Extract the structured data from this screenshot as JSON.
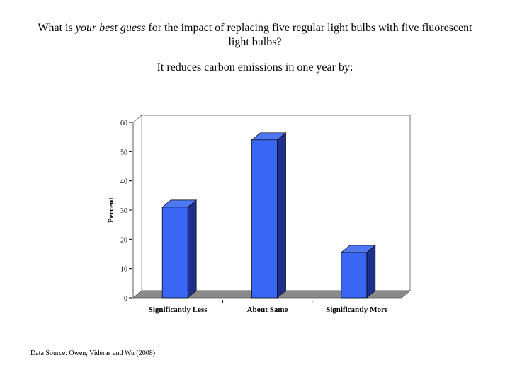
{
  "question": {
    "prefix": "What is ",
    "emphasis": "your best guess",
    "suffix": " for the impact of replacing five regular light bulbs with five fluorescent light bulbs?"
  },
  "subquestion": "It reduces carbon emissions in one year by:",
  "source": "Data Source: Owen, Videras and Wu (2008)",
  "colors": {
    "bar_front": "#3a66f5",
    "bar_side": "#1f2f8c",
    "bar_top": "#4f78f2",
    "floor": "#8a8a8a"
  },
  "chart_data": {
    "type": "bar",
    "categories": [
      "Significantly Less",
      "About Same",
      "Significantly More"
    ],
    "values": [
      31,
      54,
      15.5
    ],
    "xlabel": "",
    "ylabel": "Percent",
    "ylim": [
      0,
      60
    ],
    "yticks": [
      0,
      10,
      20,
      30,
      40,
      50,
      60
    ],
    "grid": false,
    "legend": "none"
  }
}
